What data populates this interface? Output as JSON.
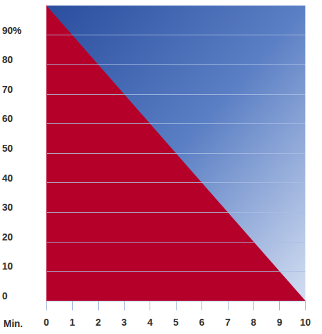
{
  "chart_data": {
    "type": "area",
    "x": [
      0,
      10
    ],
    "values": [
      100,
      0
    ],
    "color": "#b5002a",
    "xlabel": "Min.",
    "xlim": [
      0,
      10
    ],
    "xticks": [
      0,
      1,
      2,
      3,
      4,
      5,
      6,
      7,
      8,
      9,
      10
    ],
    "ylim": [
      0,
      100
    ],
    "yticks": [
      0,
      10,
      20,
      30,
      40,
      50,
      60,
      70,
      80,
      {
        "value": 90,
        "label": "90%"
      }
    ],
    "grid": true
  }
}
